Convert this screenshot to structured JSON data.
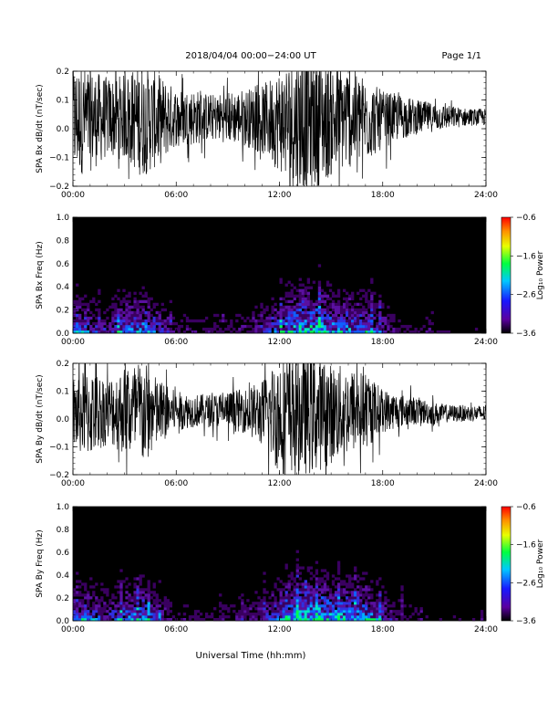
{
  "header": {
    "title": "2018/04/04  00:00−24:00 UT",
    "page": "Page 1/1"
  },
  "x_title": "Universal Time (hh:mm)",
  "chart_data": [
    {
      "type": "line",
      "ylabel": "SPA Bx dB/dt (nT/sec)",
      "ylim": [
        -0.2,
        0.2
      ],
      "xlim_hours": [
        0,
        24
      ],
      "x_ticks": [
        "00:00",
        "06:00",
        "12:00",
        "18:00",
        "24:00"
      ],
      "y_ticks": [
        "0.2",
        "0.1",
        "0.0",
        "−0.1",
        "−0.2"
      ],
      "series": [
        {
          "x_hours": [
            0,
            1,
            2,
            3,
            4,
            5,
            6,
            7,
            8,
            9,
            10,
            11,
            12,
            13,
            14,
            15,
            16,
            17,
            18,
            19,
            20,
            21,
            22,
            23,
            24
          ],
          "center": [
            0.03,
            0.03,
            0.04,
            0.04,
            0.03,
            0.03,
            0.04,
            0.04,
            0.04,
            0.04,
            0.04,
            0.03,
            0.03,
            0.02,
            0.03,
            0.03,
            0.04,
            0.03,
            0.03,
            0.04,
            0.04,
            0.04,
            0.04,
            0.04,
            0.04
          ],
          "amplitude": [
            0.2,
            0.18,
            0.14,
            0.15,
            0.2,
            0.16,
            0.1,
            0.1,
            0.08,
            0.09,
            0.1,
            0.12,
            0.18,
            0.24,
            0.24,
            0.2,
            0.18,
            0.15,
            0.1,
            0.08,
            0.06,
            0.05,
            0.04,
            0.03,
            0.03
          ]
        }
      ]
    },
    {
      "type": "heatmap",
      "ylabel": "SPA Bx Freq (Hz)",
      "ylim": [
        0.0,
        1.0
      ],
      "xlim_hours": [
        0,
        24
      ],
      "x_ticks": [
        "00:00",
        "06:00",
        "12:00",
        "18:00",
        "24:00"
      ],
      "y_ticks": [
        "1.0",
        "0.8",
        "0.6",
        "0.4",
        "0.2",
        "0.0"
      ],
      "colorbar": {
        "label": "Log₁₀ Power",
        "ticks": [
          "−0.6",
          "−1.6",
          "−2.6",
          "−3.6"
        ],
        "range": [
          -3.6,
          -0.6
        ]
      },
      "activity_hours": [
        0,
        1,
        2,
        3,
        4,
        5,
        6,
        7,
        8,
        9,
        10,
        11,
        12,
        13,
        14,
        15,
        16,
        17,
        18,
        19,
        20,
        21,
        22,
        23,
        24
      ],
      "activity_level": [
        0.6,
        0.5,
        0.4,
        0.6,
        0.7,
        0.5,
        0.3,
        0.3,
        0.3,
        0.3,
        0.35,
        0.45,
        0.6,
        0.85,
        0.9,
        0.75,
        0.7,
        0.65,
        0.45,
        0.3,
        0.25,
        0.2,
        0.2,
        0.2,
        0.2
      ]
    },
    {
      "type": "line",
      "ylabel": "SPA By dB/dt (nT/sec)",
      "ylim": [
        -0.2,
        0.2
      ],
      "xlim_hours": [
        0,
        24
      ],
      "x_ticks": [
        "00:00",
        "06:00",
        "12:00",
        "18:00",
        "24:00"
      ],
      "y_ticks": [
        "0.2",
        "0.1",
        "0.0",
        "−0.1",
        "−0.2"
      ],
      "series": [
        {
          "x_hours": [
            0,
            1,
            2,
            3,
            4,
            5,
            6,
            7,
            8,
            9,
            10,
            11,
            12,
            13,
            14,
            15,
            16,
            17,
            18,
            19,
            20,
            21,
            22,
            23,
            24
          ],
          "center": [
            0.02,
            0.02,
            0.03,
            0.03,
            0.02,
            0.02,
            0.03,
            0.03,
            0.03,
            0.03,
            0.03,
            0.02,
            0.02,
            0.02,
            0.02,
            0.02,
            0.03,
            0.03,
            0.03,
            0.03,
            0.03,
            0.02,
            0.02,
            0.02,
            0.02
          ],
          "amplitude": [
            0.14,
            0.16,
            0.12,
            0.16,
            0.2,
            0.12,
            0.07,
            0.06,
            0.06,
            0.07,
            0.08,
            0.12,
            0.22,
            0.22,
            0.22,
            0.18,
            0.16,
            0.14,
            0.08,
            0.06,
            0.05,
            0.04,
            0.03,
            0.03,
            0.03
          ]
        }
      ]
    },
    {
      "type": "heatmap",
      "ylabel": "SPA By Freq (Hz)",
      "ylim": [
        0.0,
        1.0
      ],
      "xlim_hours": [
        0,
        24
      ],
      "x_ticks": [
        "00:00",
        "06:00",
        "12:00",
        "18:00",
        "24:00"
      ],
      "y_ticks": [
        "1.0",
        "0.8",
        "0.6",
        "0.4",
        "0.2",
        "0.0"
      ],
      "colorbar": {
        "label": "Log₁₀ Power",
        "ticks": [
          "−0.6",
          "−1.6",
          "−2.6",
          "−3.6"
        ],
        "range": [
          -3.6,
          -0.6
        ]
      },
      "activity_hours": [
        0,
        1,
        2,
        3,
        4,
        5,
        6,
        7,
        8,
        9,
        10,
        11,
        12,
        13,
        14,
        15,
        16,
        17,
        18,
        19,
        20,
        21,
        22,
        23,
        24
      ],
      "activity_level": [
        0.55,
        0.6,
        0.45,
        0.6,
        0.7,
        0.45,
        0.3,
        0.25,
        0.25,
        0.3,
        0.35,
        0.45,
        0.6,
        0.85,
        0.9,
        0.8,
        0.75,
        0.7,
        0.5,
        0.35,
        0.25,
        0.2,
        0.2,
        0.2,
        0.2
      ]
    }
  ]
}
